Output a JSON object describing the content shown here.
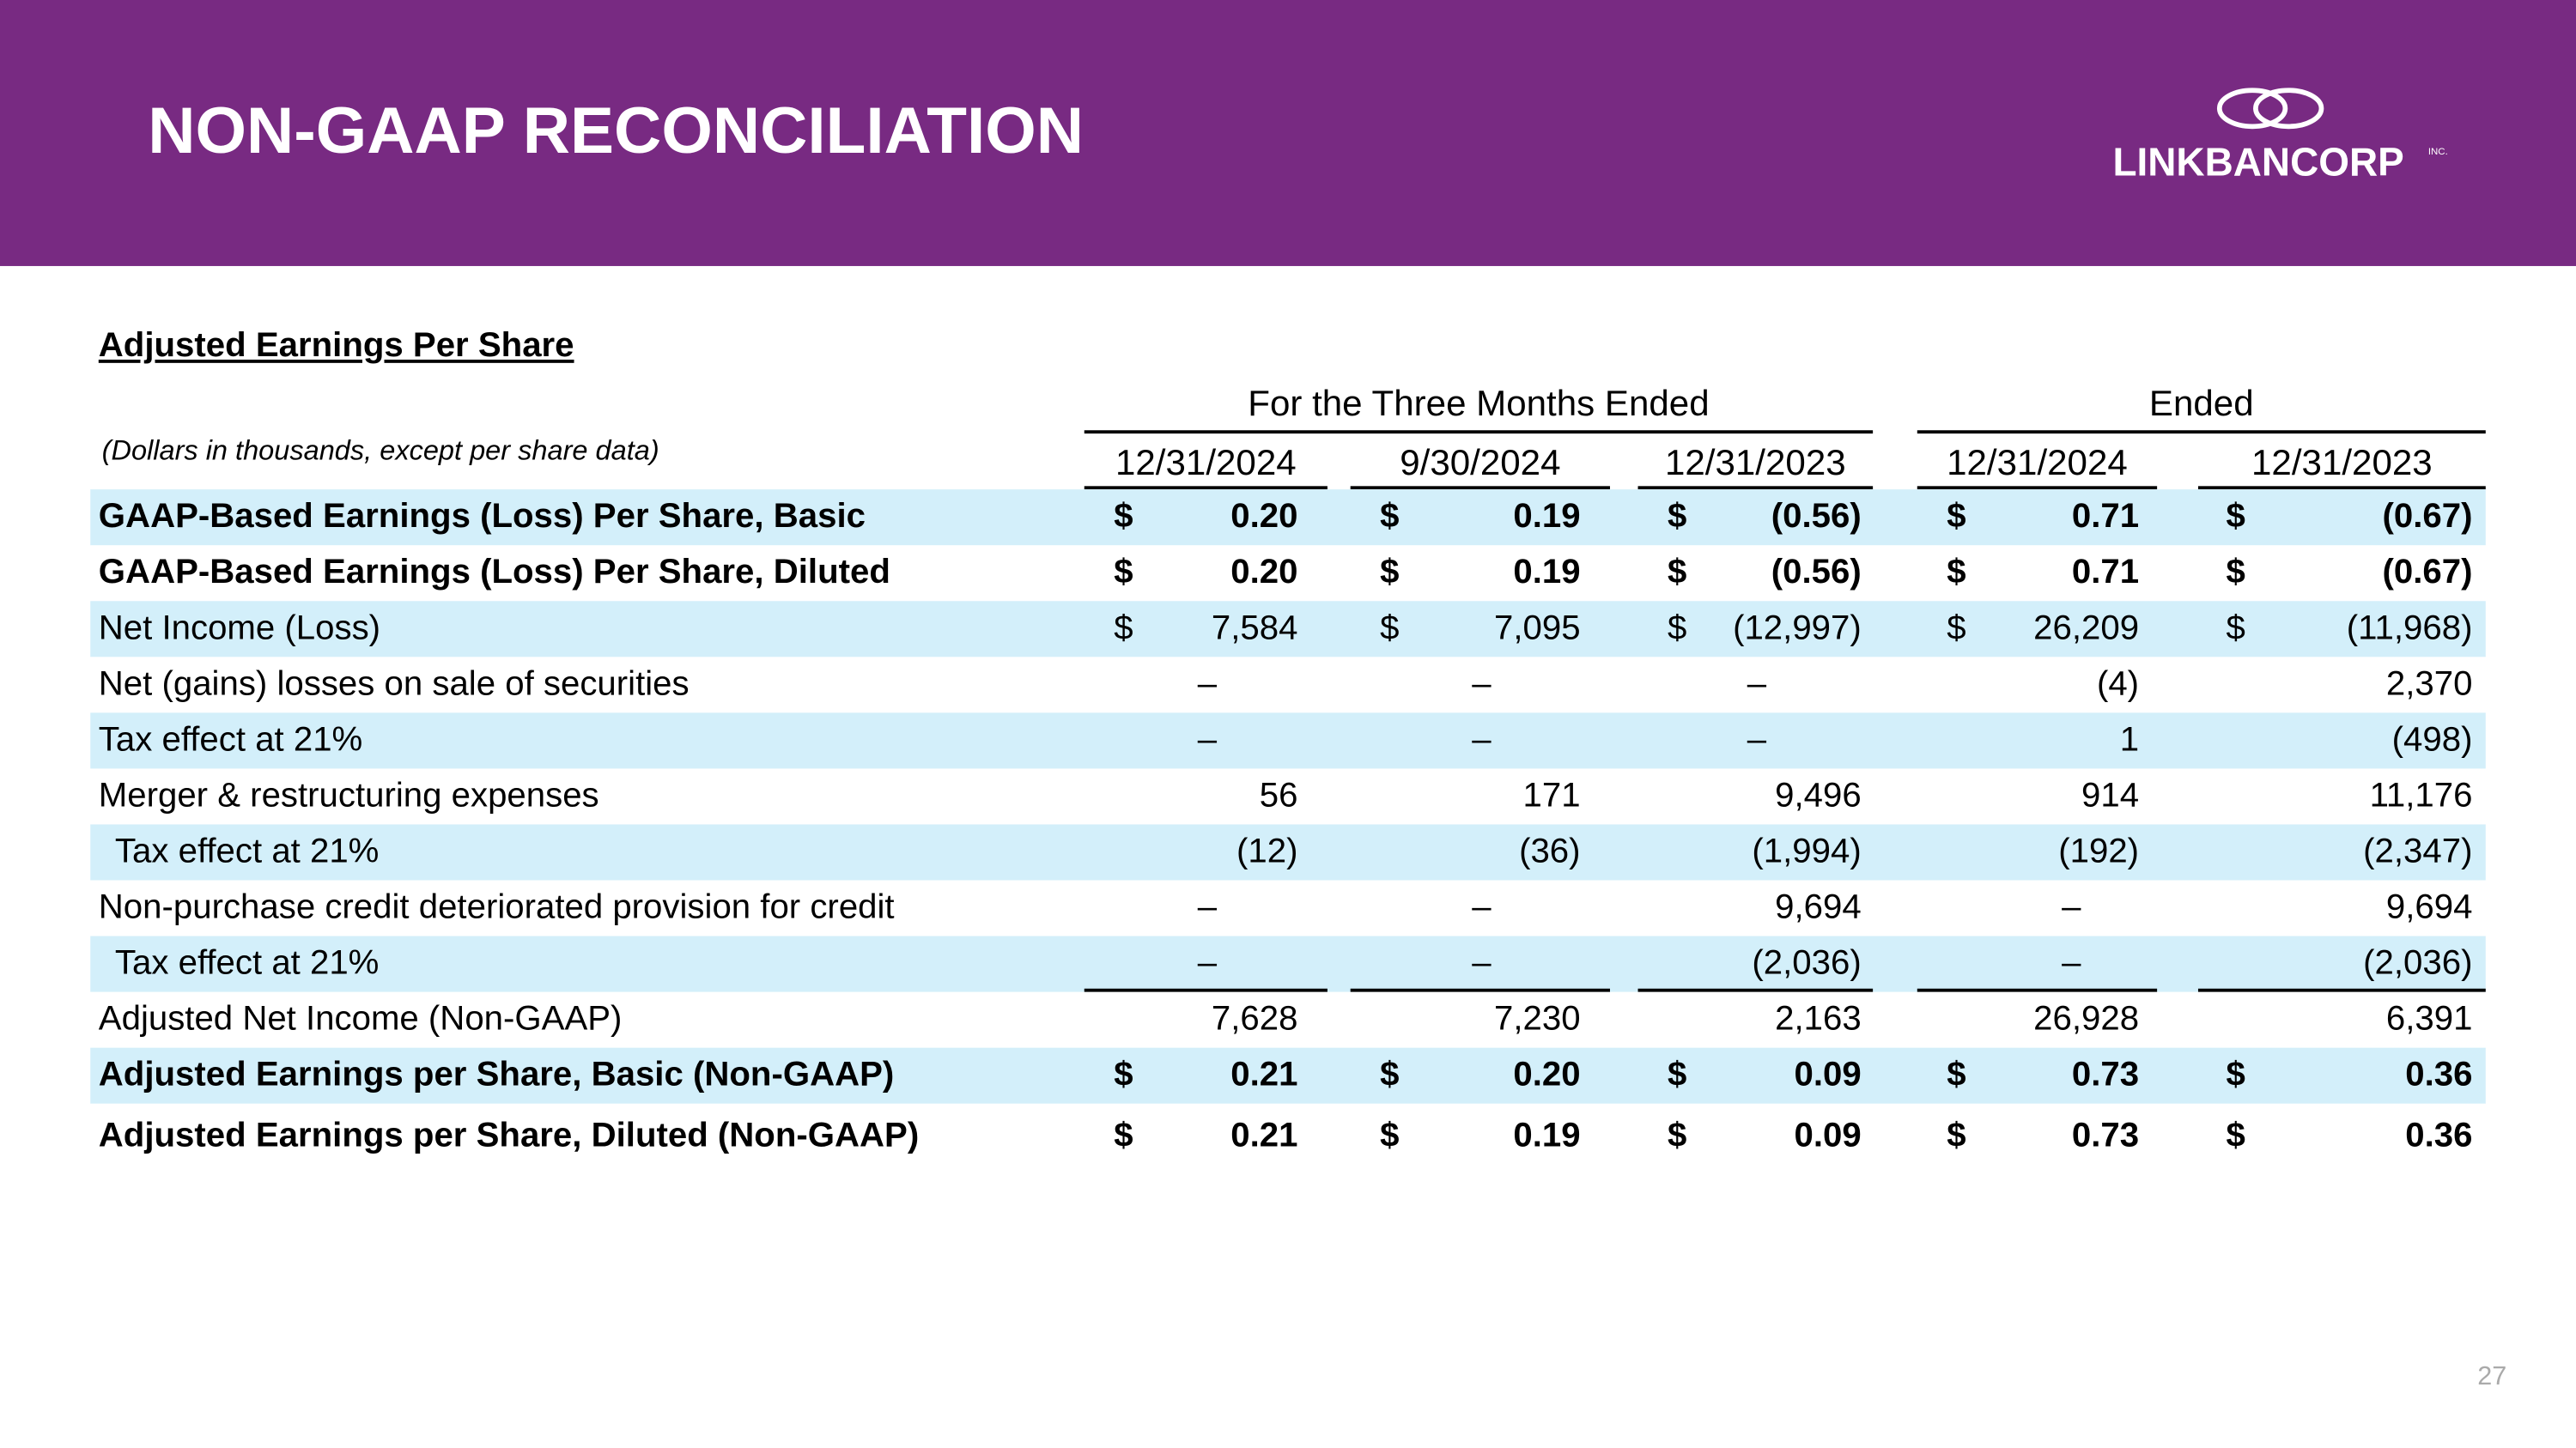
{
  "header": {
    "title": "NON-GAAP RECONCILIATION",
    "logo": "LINKBANCORP",
    "logo_suffix": "INC."
  },
  "table": {
    "title": "Adjusted Earnings Per Share",
    "note": "(Dollars in thousands, except per share data)",
    "groups": [
      "For the Three Months Ended",
      "Ended"
    ],
    "columns": [
      "12/31/2024",
      "9/30/2024",
      "12/31/2023",
      "12/31/2024",
      "12/31/2023"
    ],
    "rows": [
      {
        "label": "GAAP-Based Earnings (Loss) Per Share, Basic",
        "symbol": "$",
        "values": [
          "0.20",
          "0.19",
          "(0.56)",
          "0.71",
          "(0.67)"
        ]
      },
      {
        "label": "GAAP-Based Earnings (Loss) Per Share, Diluted",
        "symbol": "$",
        "values": [
          "0.20",
          "0.19",
          "(0.56)",
          "0.71",
          "(0.67)"
        ]
      },
      {
        "label": "Net Income (Loss)",
        "symbol": "$",
        "values": [
          "7,584",
          "7,095",
          "(12,997)",
          "26,209",
          "(11,968)"
        ]
      },
      {
        "label": "Net (gains) losses on sale of securities",
        "values": [
          "–",
          "–",
          "–",
          "(4)",
          "2,370"
        ]
      },
      {
        "label": "Tax effect at 21%",
        "values": [
          "–",
          "–",
          "–",
          "1",
          "(498)"
        ]
      },
      {
        "label": "Merger & restructuring expenses",
        "values": [
          "56",
          "171",
          "9,496",
          "914",
          "11,176"
        ]
      },
      {
        "label": "Tax effect at 21%",
        "values": [
          "(12)",
          "(36)",
          "(1,994)",
          "(192)",
          "(2,347)"
        ]
      },
      {
        "label": "Non-purchase credit deteriorated provision for credit",
        "values": [
          "–",
          "–",
          "9,694",
          "–",
          "9,694"
        ]
      },
      {
        "label": "Tax effect at 21%",
        "values": [
          "–",
          "–",
          "(2,036)",
          "–",
          "(2,036)"
        ]
      },
      {
        "label": "Adjusted Net Income (Non-GAAP)",
        "values": [
          "7,628",
          "7,230",
          "2,163",
          "26,928",
          "6,391"
        ]
      },
      {
        "label": "Adjusted Earnings per Share, Basic (Non-GAAP)",
        "symbol": "$",
        "values": [
          "0.21",
          "0.20",
          "0.09",
          "0.73",
          "0.36"
        ]
      },
      {
        "label": "Adjusted Earnings per Share, Diluted (Non-GAAP)",
        "symbol": "$",
        "values": [
          "0.21",
          "0.19",
          "0.09",
          "0.73",
          "0.36"
        ]
      }
    ]
  },
  "footer": {
    "page_number": "27"
  }
}
